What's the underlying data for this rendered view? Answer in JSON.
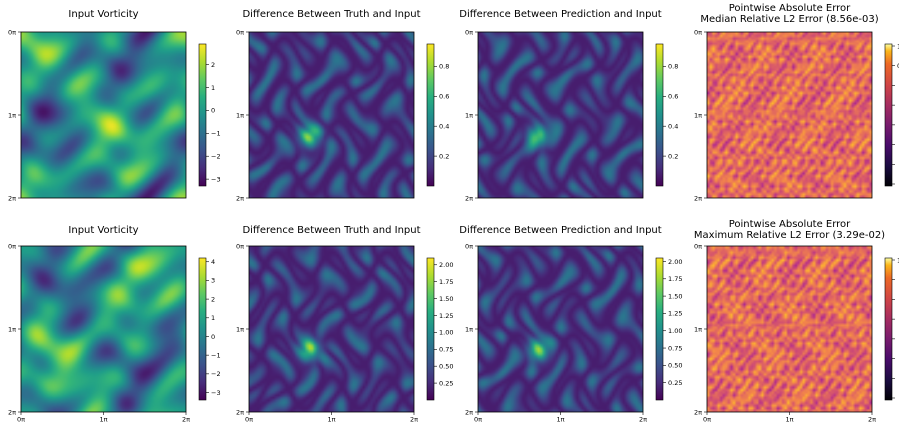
{
  "figure": {
    "rows": [
      {
        "panels": [
          {
            "title": "Input Vorticity",
            "cmap": "viridis",
            "pattern": "swirl"
          },
          {
            "title": "Difference Between Truth and Input",
            "cmap": "viridis",
            "pattern": "diff"
          },
          {
            "title": "Difference Between Prediction and Input",
            "cmap": "viridis",
            "pattern": "diff"
          },
          {
            "title": "Pointwise Absolute Error",
            "subtitle": "Median Relative L2 Error (8.56e-03)",
            "cmap": "plasma",
            "pattern": "error"
          }
        ]
      },
      {
        "panels": [
          {
            "title": "Input Vorticity",
            "cmap": "viridis",
            "pattern": "swirl"
          },
          {
            "title": "Difference Between Truth and Input",
            "cmap": "viridis",
            "pattern": "diff"
          },
          {
            "title": "Difference Between Prediction and Input",
            "cmap": "viridis",
            "pattern": "diff"
          },
          {
            "title": "Pointwise Absolute Error",
            "subtitle": "Maximum Relative L2 Error (3.29e-02)",
            "cmap": "plasma",
            "pattern": "error"
          }
        ]
      }
    ],
    "x_ticks": [
      "0π",
      "1π",
      "2π"
    ],
    "y_ticks": [
      "0π",
      "1π",
      "2π"
    ]
  },
  "chart_data": [
    {
      "type": "heatmap",
      "title": "Input Vorticity",
      "colormap": "viridis",
      "colorbar_ticks": [
        2,
        1,
        0,
        -1,
        -2,
        -3
      ],
      "colorbar_range": [
        -3.3,
        2.9
      ],
      "x_ticks": [
        "0π",
        "1π",
        "2π"
      ],
      "y_ticks": [
        "0π",
        "1π",
        "2π"
      ]
    },
    {
      "type": "heatmap",
      "title": "Difference Between Truth and Input",
      "colormap": "viridis",
      "colorbar_ticks": [
        0.8,
        0.6,
        0.4,
        0.2
      ],
      "colorbar_range": [
        0.0,
        0.95
      ],
      "x_ticks": [
        "0π",
        "1π",
        "2π"
      ],
      "y_ticks": [
        "0π",
        "1π",
        "2π"
      ]
    },
    {
      "type": "heatmap",
      "title": "Difference Between Prediction and Input",
      "colormap": "viridis",
      "colorbar_ticks": [
        0.8,
        0.6,
        0.4,
        0.2
      ],
      "colorbar_range": [
        0.0,
        0.95
      ],
      "x_ticks": [
        "0π",
        "1π",
        "2π"
      ],
      "y_ticks": [
        "0π",
        "1π",
        "2π"
      ]
    },
    {
      "type": "heatmap",
      "title": "Pointwise Absolute Error",
      "subtitle": "Median Relative L2 Error (8.56e-03)",
      "colormap": "plasma",
      "colorbar_ticks": [
        "1",
        "0",
        "",
        "",
        "",
        "",
        "",
        ""
      ],
      "x_ticks": [
        "0π",
        "1π",
        "2π"
      ],
      "y_ticks": [
        "0π",
        "1π",
        "2π"
      ]
    },
    {
      "type": "heatmap",
      "title": "Input Vorticity",
      "colormap": "viridis",
      "colorbar_ticks": [
        4,
        3,
        2,
        1,
        0,
        -1,
        -2,
        -3
      ],
      "colorbar_range": [
        -3.4,
        4.2
      ],
      "x_ticks": [
        "0π",
        "1π",
        "2π"
      ],
      "y_ticks": [
        "0π",
        "1π",
        "2π"
      ]
    },
    {
      "type": "heatmap",
      "title": "Difference Between Truth and Input",
      "colormap": "viridis",
      "colorbar_ticks": [
        "2.00",
        "1.75",
        "1.50",
        "1.25",
        "1.00",
        "0.75",
        "0.50",
        "0.25"
      ],
      "colorbar_range": [
        0.0,
        2.1
      ],
      "x_ticks": [
        "0π",
        "1π",
        "2π"
      ],
      "y_ticks": [
        "0π",
        "1π",
        "2π"
      ]
    },
    {
      "type": "heatmap",
      "title": "Difference Between Prediction and Input",
      "colormap": "viridis",
      "colorbar_ticks": [
        "2.00",
        "1.75",
        "1.50",
        "1.25",
        "1.00",
        "0.75",
        "0.50",
        "0.25"
      ],
      "colorbar_range": [
        0.0,
        2.05
      ],
      "x_ticks": [
        "0π",
        "1π",
        "2π"
      ],
      "y_ticks": [
        "0π",
        "1π",
        "2π"
      ]
    },
    {
      "type": "heatmap",
      "title": "Pointwise Absolute Error",
      "subtitle": "Maximum Relative L2 Error (3.29e-02)",
      "colormap": "plasma",
      "colorbar_ticks": [
        "1",
        "",
        "",
        "",
        "",
        "",
        "",
        ""
      ],
      "x_ticks": [
        "0π",
        "1π",
        "2π"
      ],
      "y_ticks": [
        "0π",
        "1π",
        "2π"
      ]
    }
  ]
}
